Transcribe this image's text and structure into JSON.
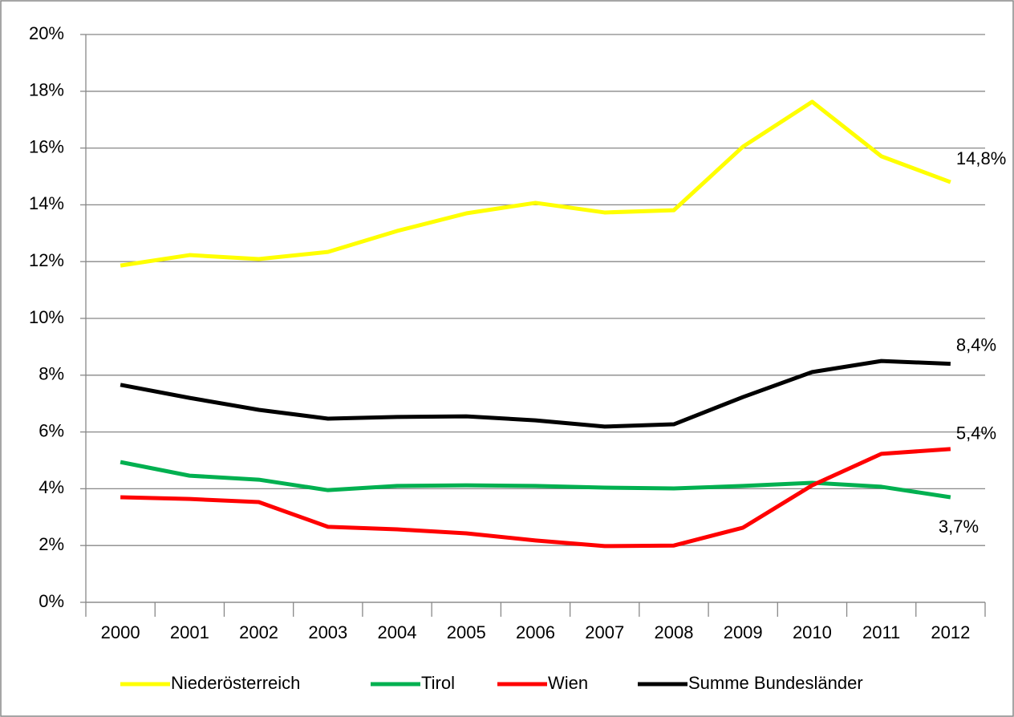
{
  "chart_data": {
    "type": "line",
    "categories": [
      "2000",
      "2001",
      "2002",
      "2003",
      "2004",
      "2005",
      "2006",
      "2007",
      "2008",
      "2009",
      "2010",
      "2011",
      "2012"
    ],
    "series": [
      {
        "name": "Niederösterreich",
        "color": "#ffff00",
        "values": [
          11.86,
          12.23,
          12.09,
          12.34,
          13.08,
          13.7,
          14.07,
          13.73,
          13.81,
          16.05,
          17.63,
          15.71,
          14.8
        ],
        "value_labels": [
          null,
          null,
          null,
          null,
          null,
          null,
          null,
          null,
          null,
          null,
          null,
          null,
          "14,8%"
        ]
      },
      {
        "name": "Tirol",
        "color": "#00b050",
        "values": [
          4.94,
          4.46,
          4.32,
          3.95,
          4.1,
          4.12,
          4.1,
          4.04,
          4.01,
          4.1,
          4.21,
          4.07,
          3.7
        ],
        "value_labels": [
          null,
          null,
          null,
          null,
          null,
          null,
          null,
          null,
          null,
          null,
          null,
          null,
          "3,7%"
        ]
      },
      {
        "name": "Wien",
        "color": "#ff0000",
        "values": [
          3.7,
          3.64,
          3.53,
          2.66,
          2.57,
          2.43,
          2.18,
          1.98,
          2.0,
          2.63,
          4.12,
          5.23,
          5.4
        ],
        "value_labels": [
          null,
          null,
          null,
          null,
          null,
          null,
          null,
          null,
          null,
          null,
          null,
          null,
          "5,4%"
        ]
      },
      {
        "name": "Summe Bundesländer",
        "color": "#000000",
        "values": [
          7.66,
          7.2,
          6.78,
          6.47,
          6.53,
          6.55,
          6.41,
          6.19,
          6.27,
          7.23,
          8.11,
          8.5,
          8.4
        ],
        "value_labels": [
          null,
          null,
          null,
          null,
          null,
          null,
          null,
          null,
          null,
          null,
          null,
          null,
          "8,4%"
        ]
      }
    ],
    "ylim": [
      0,
      20
    ],
    "yticks": [
      {
        "value": 0,
        "label": "0%"
      },
      {
        "value": 2,
        "label": "2%"
      },
      {
        "value": 4,
        "label": "4%"
      },
      {
        "value": 6,
        "label": "6%"
      },
      {
        "value": 8,
        "label": "8%"
      },
      {
        "value": 10,
        "label": "10%"
      },
      {
        "value": 12,
        "label": "12%"
      },
      {
        "value": 14,
        "label": "14%"
      },
      {
        "value": 16,
        "label": "16%"
      },
      {
        "value": 18,
        "label": "18%"
      },
      {
        "value": 20,
        "label": "20%"
      }
    ],
    "grid": true,
    "legend": "bottom"
  }
}
